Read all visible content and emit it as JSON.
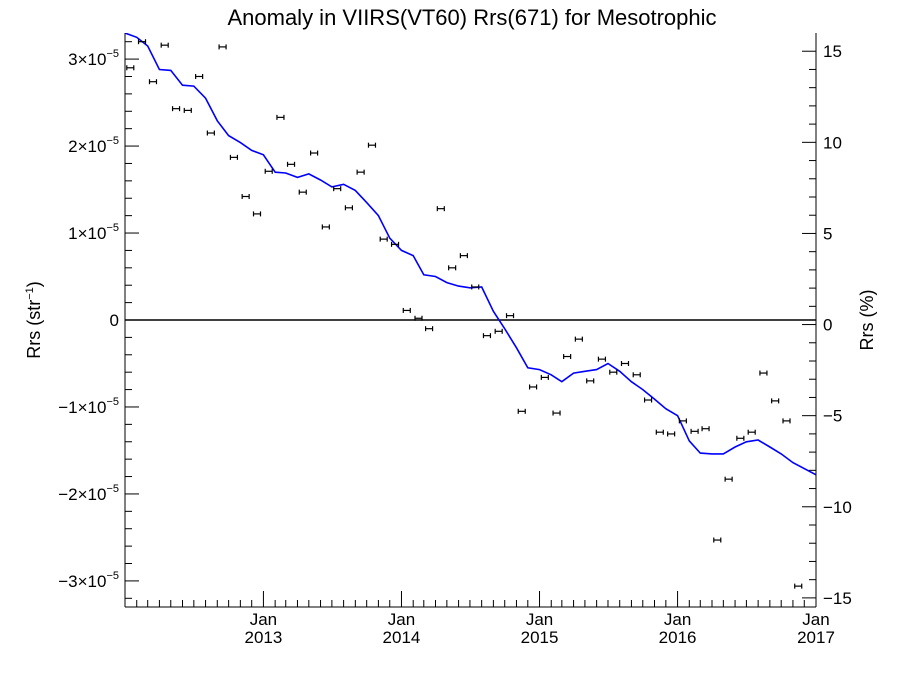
{
  "chart_data": {
    "type": "scatter",
    "title": "Anomaly in VIIRS(VT60) Rrs(671) for Mesotrophic",
    "ylabel_left": "Rrs (str",
    "ylabel_left_sup": "−1",
    "ylabel_left_close": ")",
    "ylabel_right": "Rrs (%)",
    "x_range": [
      "2012-01-01",
      "2017-01-01"
    ],
    "ylim_left": [
      -3.3e-05,
      3.3e-05
    ],
    "ylim_right": [
      -15.5,
      16
    ],
    "left_ticks": [
      {
        "value": 3e-05,
        "mantissa": "3",
        "times": "×10",
        "exp": "−5"
      },
      {
        "value": 2e-05,
        "mantissa": "2",
        "times": "×10",
        "exp": "−5"
      },
      {
        "value": 1e-05,
        "mantissa": "1",
        "times": "×10",
        "exp": "−5"
      },
      {
        "value": 0,
        "mantissa": "0",
        "times": "",
        "exp": ""
      },
      {
        "value": -1e-05,
        "mantissa": "−1",
        "times": "×10",
        "exp": "−5"
      },
      {
        "value": -2e-05,
        "mantissa": "−2",
        "times": "×10",
        "exp": "−5"
      },
      {
        "value": -3e-05,
        "mantissa": "−3",
        "times": "×10",
        "exp": "−5"
      }
    ],
    "right_ticks": [
      {
        "value": 15,
        "label": "15"
      },
      {
        "value": 10,
        "label": "10"
      },
      {
        "value": 5,
        "label": "5"
      },
      {
        "value": 0,
        "label": "0"
      },
      {
        "value": -5,
        "label": "−5"
      },
      {
        "value": -10,
        "label": "−10"
      },
      {
        "value": -15,
        "label": "−15"
      }
    ],
    "x_ticks": [
      {
        "date": "2013-01-01",
        "month": "Jan",
        "year": "2013"
      },
      {
        "date": "2014-01-01",
        "month": "Jan",
        "year": "2014"
      },
      {
        "date": "2015-01-01",
        "month": "Jan",
        "year": "2015"
      },
      {
        "date": "2016-01-01",
        "month": "Jan",
        "year": "2016"
      },
      {
        "date": "2017-01-01",
        "month": "Jan",
        "year": "2017"
      }
    ],
    "zero_line": true,
    "series": [
      {
        "style": "points-with-error-bars",
        "color": "#000000",
        "points": [
          {
            "x": "2012-01-15",
            "y": 2.9e-05
          },
          {
            "x": "2012-02-15",
            "y": 3.2e-05
          },
          {
            "x": "2012-03-15",
            "y": 2.74e-05
          },
          {
            "x": "2012-04-15",
            "y": 3.16e-05
          },
          {
            "x": "2012-05-15",
            "y": 2.43e-05
          },
          {
            "x": "2012-06-15",
            "y": 2.41e-05
          },
          {
            "x": "2012-07-15",
            "y": 2.8e-05
          },
          {
            "x": "2012-08-15",
            "y": 2.15e-05
          },
          {
            "x": "2012-09-15",
            "y": 3.14e-05
          },
          {
            "x": "2012-10-15",
            "y": 1.87e-05
          },
          {
            "x": "2012-11-15",
            "y": 1.42e-05
          },
          {
            "x": "2012-12-15",
            "y": 1.22e-05
          },
          {
            "x": "2013-01-15",
            "y": 1.71e-05
          },
          {
            "x": "2013-02-15",
            "y": 2.33e-05
          },
          {
            "x": "2013-03-15",
            "y": 1.79e-05
          },
          {
            "x": "2013-04-15",
            "y": 1.47e-05
          },
          {
            "x": "2013-05-15",
            "y": 1.92e-05
          },
          {
            "x": "2013-06-15",
            "y": 1.07e-05
          },
          {
            "x": "2013-07-15",
            "y": 1.51e-05
          },
          {
            "x": "2013-08-15",
            "y": 1.29e-05
          },
          {
            "x": "2013-09-15",
            "y": 1.7e-05
          },
          {
            "x": "2013-10-15",
            "y": 2.01e-05
          },
          {
            "x": "2013-11-15",
            "y": 9.3e-06
          },
          {
            "x": "2013-12-15",
            "y": 8.7e-06
          },
          {
            "x": "2014-01-15",
            "y": 1.1e-06
          },
          {
            "x": "2014-02-15",
            "y": 2e-07
          },
          {
            "x": "2014-03-15",
            "y": -1e-06
          },
          {
            "x": "2014-04-15",
            "y": 1.28e-05
          },
          {
            "x": "2014-05-15",
            "y": 6e-06
          },
          {
            "x": "2014-06-15",
            "y": 7.4e-06
          },
          {
            "x": "2014-07-15",
            "y": 3.8e-06
          },
          {
            "x": "2014-08-15",
            "y": -1.8e-06
          },
          {
            "x": "2014-09-15",
            "y": -1.3e-06
          },
          {
            "x": "2014-10-15",
            "y": 5e-07
          },
          {
            "x": "2014-11-15",
            "y": -1.05e-05
          },
          {
            "x": "2014-12-15",
            "y": -7.7e-06
          },
          {
            "x": "2015-01-15",
            "y": -6.6e-06
          },
          {
            "x": "2015-02-15",
            "y": -1.07e-05
          },
          {
            "x": "2015-03-15",
            "y": -4.2e-06
          },
          {
            "x": "2015-04-15",
            "y": -2.2e-06
          },
          {
            "x": "2015-05-15",
            "y": -7e-06
          },
          {
            "x": "2015-06-15",
            "y": -4.5e-06
          },
          {
            "x": "2015-07-15",
            "y": -6e-06
          },
          {
            "x": "2015-08-15",
            "y": -5e-06
          },
          {
            "x": "2015-09-15",
            "y": -6.3e-06
          },
          {
            "x": "2015-10-15",
            "y": -9.2e-06
          },
          {
            "x": "2015-11-15",
            "y": -1.29e-05
          },
          {
            "x": "2015-12-15",
            "y": -1.31e-05
          },
          {
            "x": "2016-01-15",
            "y": -1.16e-05
          },
          {
            "x": "2016-02-15",
            "y": -1.28e-05
          },
          {
            "x": "2016-03-15",
            "y": -1.25e-05
          },
          {
            "x": "2016-04-15",
            "y": -2.53e-05
          },
          {
            "x": "2016-05-15",
            "y": -1.83e-05
          },
          {
            "x": "2016-06-15",
            "y": -1.36e-05
          },
          {
            "x": "2016-07-15",
            "y": -1.29e-05
          },
          {
            "x": "2016-08-15",
            "y": -6.1e-06
          },
          {
            "x": "2016-09-15",
            "y": -9.3e-06
          },
          {
            "x": "2016-10-15",
            "y": -1.16e-05
          },
          {
            "x": "2016-11-15",
            "y": -3.06e-05
          }
        ]
      },
      {
        "style": "line",
        "color": "#0000ff",
        "points": [
          {
            "x": "2012-01-01",
            "y": 3.3e-05
          },
          {
            "x": "2012-02-01",
            "y": 3.25e-05
          },
          {
            "x": "2012-03-01",
            "y": 3.15e-05
          },
          {
            "x": "2012-04-01",
            "y": 2.88e-05
          },
          {
            "x": "2012-05-01",
            "y": 2.87e-05
          },
          {
            "x": "2012-06-01",
            "y": 2.7e-05
          },
          {
            "x": "2012-07-01",
            "y": 2.69e-05
          },
          {
            "x": "2012-08-01",
            "y": 2.55e-05
          },
          {
            "x": "2012-09-01",
            "y": 2.29e-05
          },
          {
            "x": "2012-10-01",
            "y": 2.12e-05
          },
          {
            "x": "2012-11-01",
            "y": 2.04e-05
          },
          {
            "x": "2012-12-01",
            "y": 1.95e-05
          },
          {
            "x": "2013-01-01",
            "y": 1.9e-05
          },
          {
            "x": "2013-02-01",
            "y": 1.7e-05
          },
          {
            "x": "2013-03-01",
            "y": 1.69e-05
          },
          {
            "x": "2013-04-01",
            "y": 1.64e-05
          },
          {
            "x": "2013-05-01",
            "y": 1.68e-05
          },
          {
            "x": "2013-06-01",
            "y": 1.61e-05
          },
          {
            "x": "2013-07-01",
            "y": 1.53e-05
          },
          {
            "x": "2013-08-01",
            "y": 1.56e-05
          },
          {
            "x": "2013-09-01",
            "y": 1.49e-05
          },
          {
            "x": "2013-10-01",
            "y": 1.35e-05
          },
          {
            "x": "2013-11-01",
            "y": 1.2e-05
          },
          {
            "x": "2013-12-01",
            "y": 9.4e-06
          },
          {
            "x": "2014-01-01",
            "y": 8e-06
          },
          {
            "x": "2014-02-01",
            "y": 7.4e-06
          },
          {
            "x": "2014-03-01",
            "y": 5.2e-06
          },
          {
            "x": "2014-04-01",
            "y": 5e-06
          },
          {
            "x": "2014-05-01",
            "y": 4.3e-06
          },
          {
            "x": "2014-06-01",
            "y": 3.9e-06
          },
          {
            "x": "2014-07-01",
            "y": 3.7e-06
          },
          {
            "x": "2014-08-01",
            "y": 3.8e-06
          },
          {
            "x": "2014-09-01",
            "y": 1e-06
          },
          {
            "x": "2014-10-01",
            "y": -1e-06
          },
          {
            "x": "2014-11-01",
            "y": -3.2e-06
          },
          {
            "x": "2014-12-01",
            "y": -5.5e-06
          },
          {
            "x": "2015-01-01",
            "y": -5.7e-06
          },
          {
            "x": "2015-02-01",
            "y": -6.3e-06
          },
          {
            "x": "2015-03-01",
            "y": -7.1e-06
          },
          {
            "x": "2015-04-01",
            "y": -6.1e-06
          },
          {
            "x": "2015-05-01",
            "y": -5.9e-06
          },
          {
            "x": "2015-06-01",
            "y": -5.7e-06
          },
          {
            "x": "2015-07-01",
            "y": -5e-06
          },
          {
            "x": "2015-08-01",
            "y": -5.9e-06
          },
          {
            "x": "2015-09-01",
            "y": -7.1e-06
          },
          {
            "x": "2015-10-01",
            "y": -8e-06
          },
          {
            "x": "2015-11-01",
            "y": -9.1e-06
          },
          {
            "x": "2015-12-01",
            "y": -1.02e-05
          },
          {
            "x": "2016-01-01",
            "y": -1.1e-05
          },
          {
            "x": "2016-02-01",
            "y": -1.39e-05
          },
          {
            "x": "2016-03-01",
            "y": -1.53e-05
          },
          {
            "x": "2016-04-01",
            "y": -1.54e-05
          },
          {
            "x": "2016-05-01",
            "y": -1.54e-05
          },
          {
            "x": "2016-06-01",
            "y": -1.46e-05
          },
          {
            "x": "2016-07-01",
            "y": -1.4e-05
          },
          {
            "x": "2016-08-01",
            "y": -1.38e-05
          },
          {
            "x": "2016-09-01",
            "y": -1.46e-05
          },
          {
            "x": "2016-10-01",
            "y": -1.54e-05
          },
          {
            "x": "2016-11-01",
            "y": -1.64e-05
          },
          {
            "x": "2017-01-01",
            "y": -1.78e-05
          }
        ]
      }
    ]
  }
}
